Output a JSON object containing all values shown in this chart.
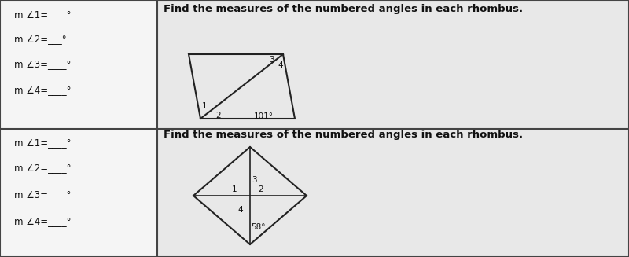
{
  "bg_color": "#b0b0b0",
  "left_cell_bg": "#f5f5f5",
  "right_cell_bg": "#e8e8e8",
  "grid_color": "#444444",
  "text_color": "#111111",
  "line_color": "#222222",
  "col_split": 200,
  "row_split": 163,
  "row1": {
    "labels": [
      "m ∠1=____°",
      "m ∠2=___°",
      "m ∠3=____°",
      "m ∠4=____°"
    ],
    "title": "Find the measures of the numbered angles in each rhombus.",
    "angle_label": "101°"
  },
  "row2": {
    "labels": [
      "m ∠1=____°",
      "m ∠2=____°",
      "m ∠3=____°",
      "m ∠4=____°"
    ],
    "title": "Find the measures of the numbered angles in each rhombus.",
    "angle_label": "58°"
  }
}
